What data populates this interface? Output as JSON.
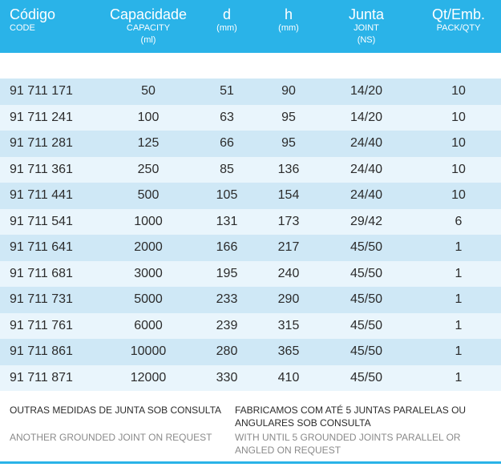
{
  "columns": [
    {
      "main": "Código",
      "sub": "CODE",
      "sub2": ""
    },
    {
      "main": "Capacidade",
      "sub": "CAPACITY",
      "sub2": "(ml)"
    },
    {
      "main": "d",
      "sub": "(mm)",
      "sub2": ""
    },
    {
      "main": "h",
      "sub": "(mm)",
      "sub2": ""
    },
    {
      "main": "Junta",
      "sub": "JOINT",
      "sub2": "(NS)"
    },
    {
      "main": "Qt/Emb.",
      "sub": "PACK/QTY",
      "sub2": ""
    }
  ],
  "rows": [
    [
      "91 711 171",
      "50",
      "51",
      "90",
      "14/20",
      "10"
    ],
    [
      "91 711 241",
      "100",
      "63",
      "95",
      "14/20",
      "10"
    ],
    [
      "91 711 281",
      "125",
      "66",
      "95",
      "24/40",
      "10"
    ],
    [
      "91 711 361",
      "250",
      "85",
      "136",
      "24/40",
      "10"
    ],
    [
      "91 711 441",
      "500",
      "105",
      "154",
      "24/40",
      "10"
    ],
    [
      "91 711 541",
      "1000",
      "131",
      "173",
      "29/42",
      "6"
    ],
    [
      "91 711 641",
      "2000",
      "166",
      "217",
      "45/50",
      "1"
    ],
    [
      "91 711 681",
      "3000",
      "195",
      "240",
      "45/50",
      "1"
    ],
    [
      "91 711 731",
      "5000",
      "233",
      "290",
      "45/50",
      "1"
    ],
    [
      "91 711 761",
      "6000",
      "239",
      "315",
      "45/50",
      "1"
    ],
    [
      "91 711 861",
      "10000",
      "280",
      "365",
      "45/50",
      "1"
    ],
    [
      "91 711 871",
      "12000",
      "330",
      "410",
      "45/50",
      "1"
    ]
  ],
  "footer": {
    "left_pt": "OUTRAS MEDIDAS DE JUNTA SOB CONSULTA",
    "left_en": "ANOTHER GROUNDED JOINT ON REQUEST",
    "right_pt_1": "FABRICAMOS COM ATÉ 5 JUNTAS PARALELAS OU",
    "right_pt_2": "ANGULARES SOB CONSULTA",
    "right_en_1": "WITH UNTIL 5 GROUNDED JOINTS PARALLEL OR",
    "right_en_2": "ANGLED ON REQUEST"
  },
  "colors": {
    "header": "#2ab3e8",
    "row_dark": "#cfe8f6",
    "row_light": "#e9f5fc"
  }
}
